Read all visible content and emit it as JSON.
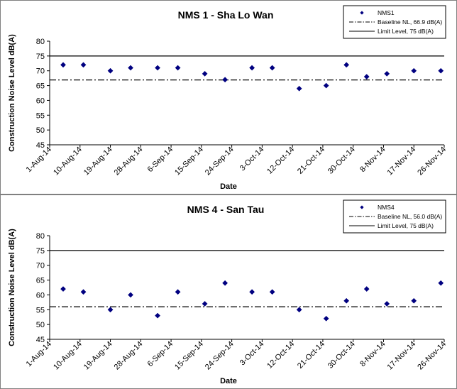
{
  "chart_data": [
    {
      "type": "scatter",
      "title": "NMS 1 - Sha Lo Wan",
      "xlabel": "Date",
      "ylabel": "Construction Noise Level  dB(A)",
      "ylim": [
        45,
        80
      ],
      "yticks": [
        "45",
        "50",
        "55",
        "60",
        "65",
        "70",
        "75",
        "80"
      ],
      "xlim": [
        "1-Aug-14",
        "26-Nov-14"
      ],
      "xticks": [
        "1-Aug-14",
        "10-Aug-14",
        "19-Aug-14",
        "28-Aug-14",
        "6-Sep-14",
        "15-Sep-14",
        "24-Sep-14",
        "3-Oct-14",
        "12-Oct-14",
        "21-Oct-14",
        "30-Oct-14",
        "8-Nov-14",
        "17-Nov-14",
        "26-Nov-14"
      ],
      "grid": false,
      "legend": "top-right",
      "series": [
        {
          "name": "NMS1",
          "x": [
            "2014-08-05",
            "2014-08-11",
            "2014-08-19",
            "2014-08-25",
            "2014-09-02",
            "2014-09-08",
            "2014-09-16",
            "2014-09-22",
            "2014-09-30",
            "2014-10-06",
            "2014-10-14",
            "2014-10-22",
            "2014-10-28",
            "2014-11-03",
            "2014-11-09",
            "2014-11-17",
            "2014-11-25"
          ],
          "y": [
            72,
            72,
            70,
            71,
            71,
            71,
            69,
            67,
            71,
            71,
            64,
            65,
            72,
            68,
            69,
            70,
            70
          ]
        }
      ],
      "reference_lines": [
        {
          "label": "Baseline NL, 66.9 dB(A)",
          "value": 66.9,
          "style": "dash-dot"
        },
        {
          "label": "Limit Level, 75 dB(A)",
          "value": 75,
          "style": "solid"
        }
      ]
    },
    {
      "type": "scatter",
      "title": "NMS 4 - San Tau",
      "xlabel": "Date",
      "ylabel": "Construction Noise Level  dB(A)",
      "ylim": [
        45,
        80
      ],
      "yticks": [
        "45",
        "50",
        "55",
        "60",
        "65",
        "70",
        "75",
        "80"
      ],
      "xlim": [
        "1-Aug-14",
        "26-Nov-14"
      ],
      "xticks": [
        "1-Aug-14",
        "10-Aug-14",
        "19-Aug-14",
        "28-Aug-14",
        "6-Sep-14",
        "15-Sep-14",
        "24-Sep-14",
        "3-Oct-14",
        "12-Oct-14",
        "21-Oct-14",
        "30-Oct-14",
        "8-Nov-14",
        "17-Nov-14",
        "26-Nov-14"
      ],
      "grid": false,
      "legend": "top-right",
      "series": [
        {
          "name": "NMS4",
          "x": [
            "2014-08-05",
            "2014-08-11",
            "2014-08-19",
            "2014-08-25",
            "2014-09-02",
            "2014-09-08",
            "2014-09-16",
            "2014-09-22",
            "2014-09-30",
            "2014-10-06",
            "2014-10-14",
            "2014-10-22",
            "2014-10-28",
            "2014-11-03",
            "2014-11-09",
            "2014-11-17",
            "2014-11-25"
          ],
          "y": [
            62,
            61,
            55,
            60,
            53,
            61,
            57,
            64,
            61,
            61,
            55,
            52,
            58,
            62,
            57,
            58,
            64
          ]
        }
      ],
      "reference_lines": [
        {
          "label": "Baseline NL, 56.0 dB(A)",
          "value": 56.0,
          "style": "dash-dot"
        },
        {
          "label": "Limit Level, 75 dB(A)",
          "value": 75,
          "style": "solid"
        }
      ]
    }
  ]
}
